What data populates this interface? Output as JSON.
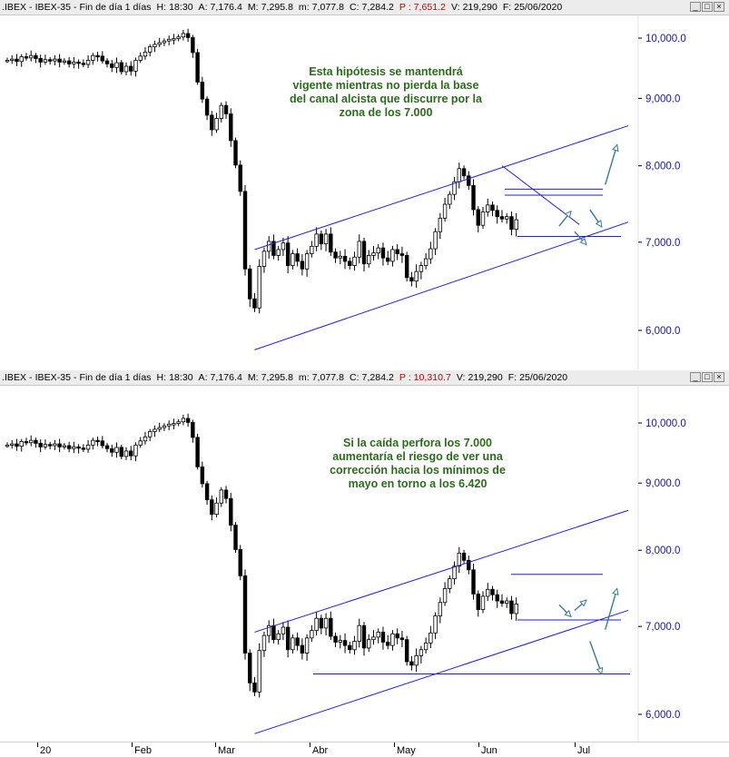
{
  "panels": [
    {
      "title_prefix": ".IBEX - IBEX-35 - Fin de día 1 días",
      "H": "H: 18:30",
      "A": "A: 7,176.4",
      "M": "M: 7,295.8",
      "m": "m: 7,077.8",
      "C": "C: 7,284.2",
      "P": "P : 7,651.2",
      "V": "V: 219,290",
      "F": "F: 25/06/2020",
      "annotation_lines": [
        "Esta hipótesis se mantendrá",
        "vigente mientras no pierda la base",
        "del canal alcista que discurre por la",
        "zona de los 7.000"
      ]
    },
    {
      "title_prefix": ".IBEX - IBEX-35 - Fin de día 1 días",
      "H": "H: 18:30",
      "A": "A: 7,176.4",
      "M": "M: 7,295.8",
      "m": "m: 7,077.8",
      "C": "C: 7,284.2",
      "P": "P : 10,310.7",
      "V": "V: 219,290",
      "F": "F: 25/06/2020",
      "annotation_lines": [
        "Si la caída perfora los 7.000",
        "aumentaría el riesgo de ver una",
        "corrección hacia los mínimos de",
        "mayo en torno a los 6.420"
      ]
    }
  ],
  "window_buttons": [
    "_",
    "□",
    "×"
  ],
  "colors": {
    "channel": "#1f1fc8",
    "projection": "#3a7a8c",
    "candle": "#000000",
    "annotation": "#2d6a1f",
    "axis_label": "#1a1a8c",
    "highlight": "#c00000"
  },
  "x_axis": {
    "labels": [
      "20",
      "Feb",
      "Mar",
      "Abr",
      "May",
      "Jun",
      "Jul"
    ]
  },
  "chart_data": {
    "type": "candlestick",
    "instrument": ".IBEX - IBEX-35",
    "y_ticks": [
      6000,
      7000,
      8000,
      9000,
      10000
    ],
    "y_tick_labels": [
      "6,000.0",
      "7,000.0",
      "8,000.0",
      "9,000.0",
      "10,000.0"
    ],
    "months": [
      "20",
      "Feb",
      "Mar",
      "Abr",
      "May",
      "Jun",
      "Jul"
    ],
    "closes": [
      9620,
      9640,
      9600,
      9680,
      9660,
      9700,
      9650,
      9590,
      9630,
      9610,
      9640,
      9590,
      9610,
      9560,
      9590,
      9570,
      9550,
      9620,
      9700,
      9690,
      9610,
      9560,
      9500,
      9580,
      9430,
      9520,
      9440,
      9620,
      9690,
      9760,
      9850,
      9890,
      9920,
      9950,
      9980,
      9990,
      10020,
      10080,
      10010,
      9750,
      9260,
      8990,
      8740,
      8520,
      8690,
      8890,
      8760,
      8360,
      8010,
      7650,
      6680,
      6340,
      6240,
      6710,
      6890,
      7010,
      6840,
      6910,
      6990,
      6720,
      6860,
      6770,
      6680,
      6860,
      6950,
      7100,
      6980,
      7100,
      6880,
      6810,
      6830,
      6770,
      6720,
      6820,
      7010,
      6740,
      6840,
      6870,
      6930,
      6810,
      6770,
      6910,
      6860,
      6840,
      6580,
      6540,
      6650,
      6720,
      6800,
      6920,
      7130,
      7300,
      7480,
      7610,
      7780,
      7960,
      7860,
      7730,
      7410,
      7210,
      7380,
      7470,
      7400,
      7320,
      7290,
      7320,
      7160,
      7280
    ],
    "projection_top": [
      [
        7200,
        7390
      ],
      [
        7130,
        6970
      ],
      [
        7410,
        7190
      ],
      [
        7740,
        8300
      ]
    ],
    "projection_bottom": [
      [
        7270,
        7120
      ],
      [
        7200,
        7330
      ],
      [
        6820,
        6440
      ],
      [
        6960,
        7480
      ]
    ],
    "channel_top_panel": {
      "upper": [
        [
          6910,
          8580
        ]
      ],
      "lower": [
        [
          5800,
          7250
        ]
      ],
      "horizontal_levels": [
        7600,
        7680,
        7070
      ],
      "downtrend_from": 8000
    },
    "channel_bottom_panel": {
      "upper": [
        [
          6930,
          8580
        ]
      ],
      "lower": [
        [
          5800,
          7200
        ]
      ],
      "horizontal_levels": [
        7670,
        7080,
        6440
      ]
    }
  }
}
